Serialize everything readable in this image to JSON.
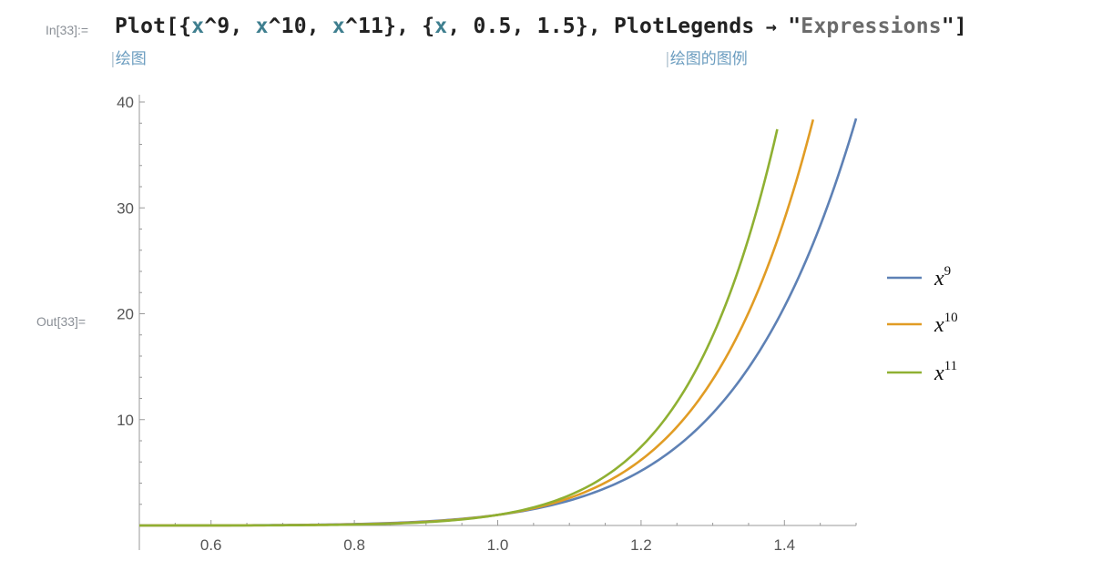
{
  "notebook": {
    "in_label": "In[33]:=",
    "out_label": "Out[33]=",
    "input_tokens": [
      {
        "text": "Plot[{",
        "cls": "tok-pun"
      },
      {
        "text": "x",
        "cls": "tok-var"
      },
      {
        "text": "^9, ",
        "cls": "tok-pun"
      },
      {
        "text": "x",
        "cls": "tok-var"
      },
      {
        "text": "^10, ",
        "cls": "tok-pun"
      },
      {
        "text": "x",
        "cls": "tok-var"
      },
      {
        "text": "^11}, {",
        "cls": "tok-pun"
      },
      {
        "text": "x",
        "cls": "tok-var"
      },
      {
        "text": ", 0.5, 1.5}, PlotLegends",
        "cls": "tok-pun"
      },
      {
        "text": " → ",
        "cls": "tok-pun tok-arrow"
      },
      {
        "text": "\"",
        "cls": "tok-pun"
      },
      {
        "text": "Expressions",
        "cls": "tok-str"
      },
      {
        "text": "\"]",
        "cls": "tok-pun"
      }
    ],
    "hint_plot": "绘图",
    "hint_legend": "绘图的图例"
  },
  "chart_data": {
    "type": "line",
    "title": "",
    "xlabel": "",
    "ylabel": "",
    "xlim": [
      0.5,
      1.5
    ],
    "ylim": [
      0,
      40
    ],
    "x_ticks": [
      0.6,
      0.8,
      1.0,
      1.2,
      1.4
    ],
    "x_tick_labels": [
      "0.6",
      "0.8",
      "1.0",
      "1.2",
      "1.4"
    ],
    "y_ticks": [
      10,
      20,
      30,
      40
    ],
    "y_tick_labels": [
      "10",
      "20",
      "30",
      "40"
    ],
    "series": [
      {
        "name": "x^9",
        "base": "x",
        "exp": "9",
        "color": "#5e81b5",
        "x": [
          0.5,
          0.6,
          0.7,
          0.8,
          0.9,
          1.0,
          1.1,
          1.2,
          1.3,
          1.4,
          1.5
        ],
        "y": [
          0.002,
          0.01,
          0.04,
          0.134,
          0.387,
          1.0,
          2.358,
          5.16,
          10.6,
          20.66,
          38.44
        ]
      },
      {
        "name": "x^10",
        "base": "x",
        "exp": "10",
        "color": "#e19c24",
        "x": [
          0.5,
          0.6,
          0.7,
          0.8,
          0.9,
          1.0,
          1.1,
          1.2,
          1.3,
          1.4,
          1.44
        ],
        "y": [
          0.001,
          0.006,
          0.028,
          0.107,
          0.349,
          1.0,
          2.594,
          6.192,
          13.79,
          28.93,
          38.34
        ]
      },
      {
        "name": "x^11",
        "base": "x",
        "exp": "11",
        "color": "#8fb032",
        "x": [
          0.5,
          0.6,
          0.7,
          0.8,
          0.9,
          1.0,
          1.1,
          1.2,
          1.3,
          1.39
        ],
        "y": [
          0.0005,
          0.004,
          0.02,
          0.086,
          0.314,
          1.0,
          2.853,
          7.43,
          17.92,
          37.43
        ]
      }
    ],
    "legend_position": "right",
    "grid": false
  }
}
